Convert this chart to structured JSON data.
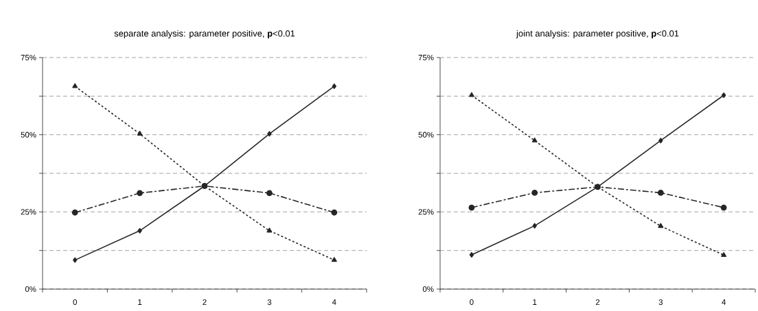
{
  "chart_data": [
    {
      "type": "line",
      "title": "separate analysis: parameter positive, **p**<0.01",
      "categories": [
        "0",
        "1",
        "2",
        "3",
        "4"
      ],
      "ylim": [
        0,
        75
      ],
      "yticks": [
        {
          "value": 0,
          "label": "0%"
        },
        {
          "value": 12.5,
          "label": null
        },
        {
          "value": 25,
          "label": "25%"
        },
        {
          "value": 37.5,
          "label": null
        },
        {
          "value": 50,
          "label": "50%"
        },
        {
          "value": 62.5,
          "label": null
        },
        {
          "value": 75,
          "label": "75%"
        }
      ],
      "grid": "y",
      "series": [
        {
          "color": "#262626",
          "marker": "diamond",
          "line_style": "solid",
          "values": [
            9.4,
            18.9,
            33.4,
            50.3,
            65.7
          ]
        },
        {
          "color": "#262626",
          "marker": "circle",
          "line_style": "dashdot",
          "values": [
            24.8,
            31.1,
            33.4,
            31.1,
            24.8
          ]
        },
        {
          "color": "#262626",
          "marker": "triangle",
          "line_style": "dotted",
          "values": [
            65.7,
            50.3,
            33.4,
            18.9,
            9.4
          ]
        }
      ]
    },
    {
      "type": "line",
      "title": "joint analysis: parameter positive, **p**<0.01",
      "categories": [
        "0",
        "1",
        "2",
        "3",
        "4"
      ],
      "ylim": [
        0,
        75
      ],
      "yticks": [
        {
          "value": 0,
          "label": "0%"
        },
        {
          "value": 12.5,
          "label": null
        },
        {
          "value": 25,
          "label": "25%"
        },
        {
          "value": 37.5,
          "label": null
        },
        {
          "value": 50,
          "label": "50%"
        },
        {
          "value": 62.5,
          "label": null
        },
        {
          "value": 75,
          "label": "75%"
        }
      ],
      "grid": "y",
      "series": [
        {
          "color": "#262626",
          "marker": "diamond",
          "line_style": "solid",
          "values": [
            11.1,
            20.5,
            33.1,
            48.1,
            62.8
          ]
        },
        {
          "color": "#262626",
          "marker": "circle",
          "line_style": "dashdot",
          "values": [
            26.4,
            31.2,
            33.1,
            31.2,
            26.4
          ]
        },
        {
          "color": "#262626",
          "marker": "triangle",
          "line_style": "dotted",
          "values": [
            62.8,
            48.1,
            33.1,
            20.4,
            11.0
          ]
        }
      ]
    }
  ]
}
